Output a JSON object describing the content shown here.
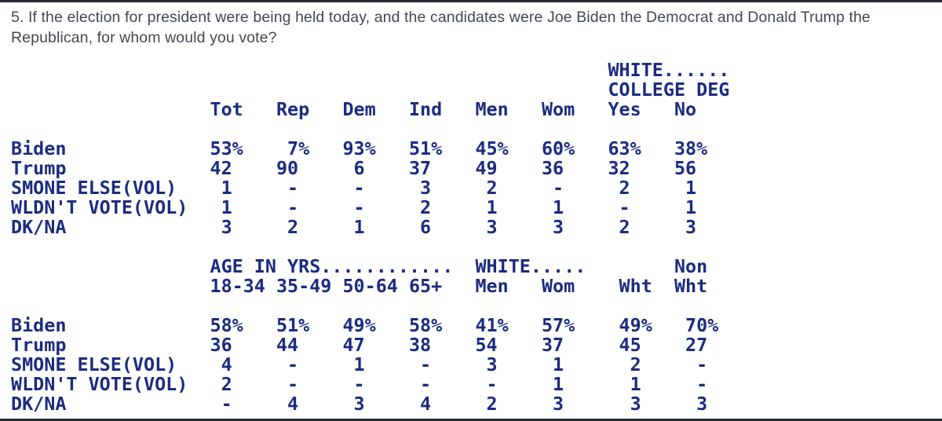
{
  "question": {
    "text": "5. If the election for president were being held today, and the candidates were Joe Biden the Democrat and Donald Trump the Republican, for whom would you vote?"
  },
  "colors": {
    "table_ink": "#1b2b80",
    "question_ink": "#43484f",
    "rule": "#262a30"
  },
  "poll_table": {
    "lines": [
      {
        "name": "t1-banner-white",
        "segments": [
          [
            54,
            "WHITE......"
          ]
        ]
      },
      {
        "name": "t1-banner-college-deg",
        "segments": [
          [
            54,
            "COLLEGE DEG"
          ]
        ]
      },
      {
        "name": "t1-column-headers",
        "segments": [
          [
            18,
            "Tot"
          ],
          [
            24,
            "Rep"
          ],
          [
            30,
            "Dem"
          ],
          [
            36,
            "Ind"
          ],
          [
            42,
            "Men"
          ],
          [
            48,
            "Wom"
          ],
          [
            54,
            "Yes"
          ],
          [
            60,
            "No"
          ]
        ]
      },
      {
        "name": "t1-spacer-line",
        "segments": []
      },
      {
        "name": "t1-row-biden",
        "segments": [
          [
            0,
            "Biden"
          ],
          [
            18,
            "53%"
          ],
          [
            25,
            "7%"
          ],
          [
            30,
            "93%"
          ],
          [
            36,
            "51%"
          ],
          [
            42,
            "45%"
          ],
          [
            48,
            "60%"
          ],
          [
            54,
            "63%"
          ],
          [
            60,
            "38%"
          ]
        ]
      },
      {
        "name": "t1-row-trump",
        "segments": [
          [
            0,
            "Trump"
          ],
          [
            18,
            "42"
          ],
          [
            24,
            "90"
          ],
          [
            31,
            "6"
          ],
          [
            36,
            "37"
          ],
          [
            42,
            "49"
          ],
          [
            48,
            "36"
          ],
          [
            54,
            "32"
          ],
          [
            60,
            "56"
          ]
        ]
      },
      {
        "name": "t1-row-smone-else",
        "segments": [
          [
            0,
            "SMONE ELSE(VOL)"
          ],
          [
            19,
            "1"
          ],
          [
            25,
            "-"
          ],
          [
            31,
            "-"
          ],
          [
            37,
            "3"
          ],
          [
            43,
            "2"
          ],
          [
            49,
            "-"
          ],
          [
            55,
            "2"
          ],
          [
            61,
            "1"
          ]
        ]
      },
      {
        "name": "t1-row-wldnt-vote",
        "segments": [
          [
            0,
            "WLDN'T VOTE(VOL)"
          ],
          [
            19,
            "1"
          ],
          [
            25,
            "-"
          ],
          [
            31,
            "-"
          ],
          [
            37,
            "2"
          ],
          [
            43,
            "1"
          ],
          [
            49,
            "1"
          ],
          [
            55,
            "-"
          ],
          [
            61,
            "1"
          ]
        ]
      },
      {
        "name": "t1-row-dk-na",
        "segments": [
          [
            0,
            "DK/NA"
          ],
          [
            19,
            "3"
          ],
          [
            25,
            "2"
          ],
          [
            31,
            "1"
          ],
          [
            37,
            "6"
          ],
          [
            43,
            "3"
          ],
          [
            49,
            "3"
          ],
          [
            55,
            "2"
          ],
          [
            61,
            "3"
          ]
        ]
      },
      {
        "name": "t2-spacer-line",
        "segments": []
      },
      {
        "name": "t2-banner-age-white-non",
        "segments": [
          [
            18,
            "AGE IN YRS............"
          ],
          [
            42,
            "WHITE....."
          ],
          [
            60,
            "Non"
          ]
        ]
      },
      {
        "name": "t2-column-headers",
        "segments": [
          [
            18,
            "18-34"
          ],
          [
            24,
            "35-49"
          ],
          [
            30,
            "50-64"
          ],
          [
            36,
            "65+"
          ],
          [
            42,
            "Men"
          ],
          [
            48,
            "Wom"
          ],
          [
            55,
            "Wht"
          ],
          [
            60,
            "Wht"
          ]
        ]
      },
      {
        "name": "t2-spacer-line-2",
        "segments": []
      },
      {
        "name": "t2-row-biden",
        "segments": [
          [
            0,
            "Biden"
          ],
          [
            18,
            "58%"
          ],
          [
            24,
            "51%"
          ],
          [
            30,
            "49%"
          ],
          [
            36,
            "58%"
          ],
          [
            42,
            "41%"
          ],
          [
            48,
            "57%"
          ],
          [
            55,
            "49%"
          ],
          [
            61,
            "70%"
          ]
        ]
      },
      {
        "name": "t2-row-trump",
        "segments": [
          [
            0,
            "Trump"
          ],
          [
            18,
            "36"
          ],
          [
            24,
            "44"
          ],
          [
            30,
            "47"
          ],
          [
            36,
            "38"
          ],
          [
            42,
            "54"
          ],
          [
            48,
            "37"
          ],
          [
            55,
            "45"
          ],
          [
            61,
            "27"
          ]
        ]
      },
      {
        "name": "t2-row-smone-else",
        "segments": [
          [
            0,
            "SMONE ELSE(VOL)"
          ],
          [
            19,
            "4"
          ],
          [
            25,
            "-"
          ],
          [
            31,
            "1"
          ],
          [
            37,
            "-"
          ],
          [
            43,
            "3"
          ],
          [
            49,
            "1"
          ],
          [
            56,
            "2"
          ],
          [
            62,
            "-"
          ]
        ]
      },
      {
        "name": "t2-row-wldnt-vote",
        "segments": [
          [
            0,
            "WLDN'T VOTE(VOL)"
          ],
          [
            19,
            "2"
          ],
          [
            25,
            "-"
          ],
          [
            31,
            "-"
          ],
          [
            37,
            "-"
          ],
          [
            43,
            "-"
          ],
          [
            49,
            "1"
          ],
          [
            56,
            "1"
          ],
          [
            62,
            "-"
          ]
        ]
      },
      {
        "name": "t2-row-dk-na",
        "segments": [
          [
            0,
            "DK/NA"
          ],
          [
            19,
            "-"
          ],
          [
            25,
            "4"
          ],
          [
            31,
            "3"
          ],
          [
            37,
            "4"
          ],
          [
            43,
            "2"
          ],
          [
            49,
            "3"
          ],
          [
            56,
            "3"
          ],
          [
            62,
            "3"
          ]
        ]
      }
    ]
  }
}
